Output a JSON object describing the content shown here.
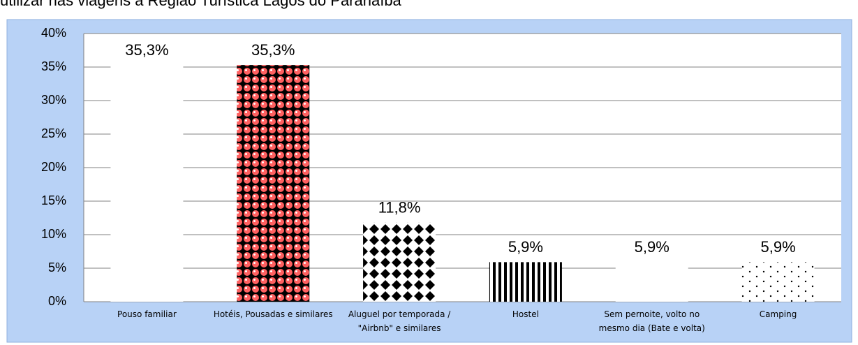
{
  "chart_data": {
    "type": "bar",
    "title": "utilizar nas viagens à Região Turística Lagos do Paranaíba",
    "categories": [
      "Pouso familiar",
      "Hotéis, Pousadas e similares",
      "Aluguel por temporada / \"Airbnb\" e similares",
      "Hostel",
      "Sem pernoite, volto no mesmo dia (Bate e volta)",
      "Camping"
    ],
    "values": [
      35.3,
      35.3,
      11.8,
      5.9,
      5.9,
      5.9
    ],
    "value_labels": [
      "35,3%",
      "35,3%",
      "11,8%",
      "5,9%",
      "5,9%",
      "5,9%"
    ],
    "colors": [
      "#000000",
      "#ff0000",
      "#1f3f7a",
      "#e87722",
      "#00a651",
      "#4472c4"
    ],
    "ylim": [
      0,
      40
    ],
    "yticks": [
      {
        "value": 0,
        "label": "0%"
      },
      {
        "value": 5,
        "label": "5%"
      },
      {
        "value": 10,
        "label": "10%"
      },
      {
        "value": 15,
        "label": "15%"
      },
      {
        "value": 20,
        "label": "20%"
      },
      {
        "value": 25,
        "label": "25%"
      },
      {
        "value": 30,
        "label": "30%"
      },
      {
        "value": 35,
        "label": "35%"
      },
      {
        "value": 40,
        "label": "40%"
      }
    ],
    "grid": true
  }
}
